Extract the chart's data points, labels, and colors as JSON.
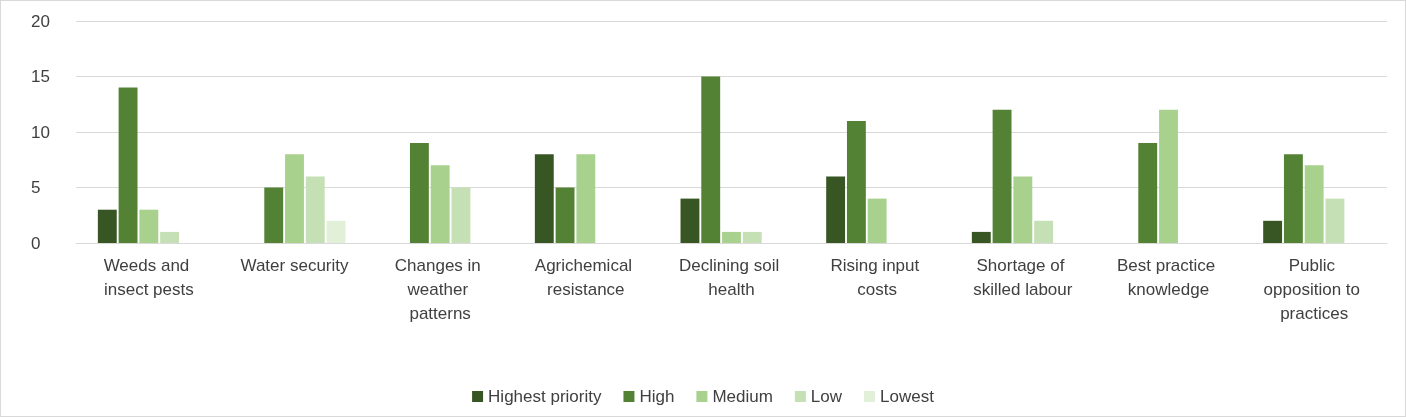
{
  "chart_data": {
    "type": "bar",
    "categories": [
      "Weeds and insect pests",
      "Water security",
      "Changes in weather patterns",
      "Agrichemical resistance",
      "Declining soil health",
      "Rising input costs",
      "Shortage of skilled labour",
      "Best practice knowledge",
      "Public opposition to practices"
    ],
    "series": [
      {
        "name": "Highest priority",
        "color": "#375623",
        "values": [
          3,
          null,
          null,
          8,
          4,
          6,
          1,
          null,
          2
        ]
      },
      {
        "name": "High",
        "color": "#548235",
        "values": [
          14,
          5,
          9,
          5,
          15,
          11,
          12,
          9,
          8
        ]
      },
      {
        "name": "Medium",
        "color": "#a9d18e",
        "values": [
          3,
          8,
          7,
          8,
          1,
          4,
          6,
          12,
          7
        ]
      },
      {
        "name": "Low",
        "color": "#c5e0b4",
        "values": [
          1,
          6,
          5,
          null,
          1,
          null,
          2,
          null,
          4
        ]
      },
      {
        "name": "Lowest",
        "color": "#e2f0d9",
        "values": [
          null,
          2,
          null,
          null,
          null,
          null,
          null,
          null,
          null
        ]
      }
    ],
    "ylim": [
      0,
      20
    ],
    "yticks": [
      0,
      5,
      10,
      15,
      20
    ],
    "grid": "y",
    "legend": "bottom"
  }
}
